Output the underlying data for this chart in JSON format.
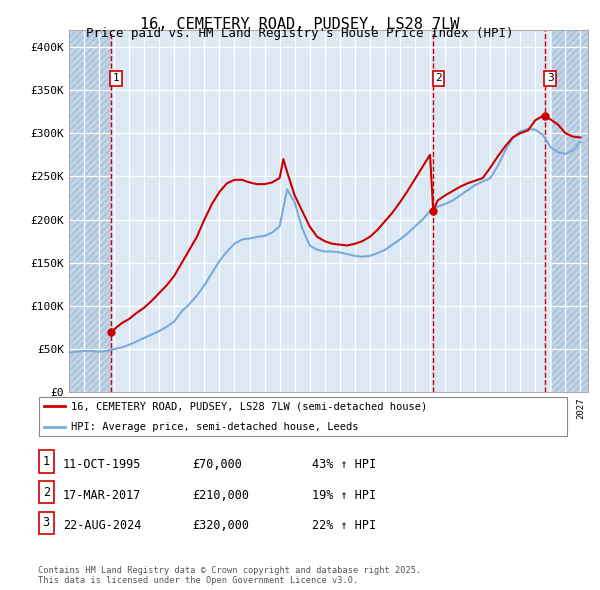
{
  "title": "16, CEMETERY ROAD, PUDSEY, LS28 7LW",
  "subtitle": "Price paid vs. HM Land Registry's House Price Index (HPI)",
  "ylim": [
    0,
    420000
  ],
  "yticks": [
    0,
    50000,
    100000,
    150000,
    200000,
    250000,
    300000,
    350000,
    400000
  ],
  "ytick_labels": [
    "£0",
    "£50K",
    "£100K",
    "£150K",
    "£200K",
    "£250K",
    "£300K",
    "£350K",
    "£400K"
  ],
  "xlim_start": 1993.0,
  "xlim_end": 2027.5,
  "background_color": "#dce9f5",
  "grid_color": "#ffffff",
  "sale_dates": [
    1995.78,
    2017.21,
    2024.64
  ],
  "sale_prices": [
    70000,
    210000,
    320000
  ],
  "sale_labels": [
    "1",
    "2",
    "3"
  ],
  "legend_label_red": "16, CEMETERY ROAD, PUDSEY, LS28 7LW (semi-detached house)",
  "legend_label_blue": "HPI: Average price, semi-detached house, Leeds",
  "table_data": [
    [
      "1",
      "11-OCT-1995",
      "£70,000",
      "43% ↑ HPI"
    ],
    [
      "2",
      "17-MAR-2017",
      "£210,000",
      "19% ↑ HPI"
    ],
    [
      "3",
      "22-AUG-2024",
      "£320,000",
      "22% ↑ HPI"
    ]
  ],
  "footer": "Contains HM Land Registry data © Crown copyright and database right 2025.\nThis data is licensed under the Open Government Licence v3.0.",
  "red_line_color": "#cc0000",
  "blue_line_color": "#7aaadd",
  "hpi_x": [
    1993,
    1993.5,
    1994,
    1994.5,
    1995,
    1995.5,
    1996,
    1996.5,
    1997,
    1997.5,
    1998,
    1998.5,
    1999,
    1999.5,
    2000,
    2000.5,
    2001,
    2001.5,
    2002,
    2002.5,
    2003,
    2003.5,
    2004,
    2004.5,
    2005,
    2005.5,
    2006,
    2006.5,
    2007,
    2007.5,
    2008,
    2008.5,
    2009,
    2009.5,
    2010,
    2010.5,
    2011,
    2011.5,
    2012,
    2012.5,
    2013,
    2013.5,
    2014,
    2014.5,
    2015,
    2015.5,
    2016,
    2016.5,
    2017,
    2017.5,
    2018,
    2018.5,
    2019,
    2019.5,
    2020,
    2020.5,
    2021,
    2021.5,
    2022,
    2022.5,
    2023,
    2023.5,
    2024,
    2024.5,
    2025,
    2025.5,
    2026,
    2026.5,
    2027
  ],
  "hpi_y": [
    46000,
    47000,
    48000,
    48000,
    47000,
    48000,
    50000,
    52000,
    55000,
    59000,
    63000,
    67000,
    71000,
    76000,
    82000,
    94000,
    102000,
    112000,
    124000,
    138000,
    152000,
    163000,
    172000,
    177000,
    178000,
    180000,
    181000,
    185000,
    192000,
    235000,
    220000,
    190000,
    170000,
    165000,
    163000,
    163000,
    162000,
    160000,
    158000,
    157000,
    158000,
    161000,
    165000,
    171000,
    177000,
    184000,
    192000,
    200000,
    210000,
    215000,
    218000,
    222000,
    228000,
    234000,
    240000,
    244000,
    248000,
    262000,
    280000,
    295000,
    302000,
    305000,
    304000,
    298000,
    284000,
    278000,
    276000,
    280000,
    290000
  ],
  "red_x": [
    1995.78,
    1996,
    1996.5,
    1997,
    1997.5,
    1998,
    1998.5,
    1999,
    1999.5,
    2000,
    2000.5,
    2001,
    2001.5,
    2002,
    2002.5,
    2003,
    2003.5,
    2004,
    2004.5,
    2005,
    2005.5,
    2006,
    2006.5,
    2007,
    2007.25,
    2007.5,
    2008,
    2008.5,
    2009,
    2009.5,
    2010,
    2010.5,
    2011,
    2011.5,
    2012,
    2012.5,
    2013,
    2013.5,
    2014,
    2014.5,
    2015,
    2015.5,
    2016,
    2016.5,
    2017,
    2017.21,
    2017.5,
    2018,
    2018.5,
    2019,
    2019.5,
    2020,
    2020.5,
    2021,
    2021.5,
    2022,
    2022.5,
    2023,
    2023.5,
    2024,
    2024.5,
    2024.64,
    2025,
    2025.5,
    2026,
    2026.5,
    2027
  ],
  "red_y": [
    70000,
    73000,
    80000,
    85000,
    92000,
    98000,
    106000,
    115000,
    124000,
    135000,
    150000,
    165000,
    180000,
    200000,
    218000,
    232000,
    242000,
    246000,
    246000,
    243000,
    241000,
    241000,
    243000,
    248000,
    270000,
    255000,
    228000,
    210000,
    192000,
    180000,
    175000,
    172000,
    171000,
    170000,
    172000,
    175000,
    180000,
    188000,
    198000,
    208000,
    220000,
    233000,
    247000,
    261000,
    275000,
    210000,
    222000,
    228000,
    233000,
    238000,
    242000,
    245000,
    248000,
    260000,
    273000,
    285000,
    295000,
    300000,
    303000,
    315000,
    320000,
    320000,
    316000,
    310000,
    300000,
    296000,
    295000
  ]
}
